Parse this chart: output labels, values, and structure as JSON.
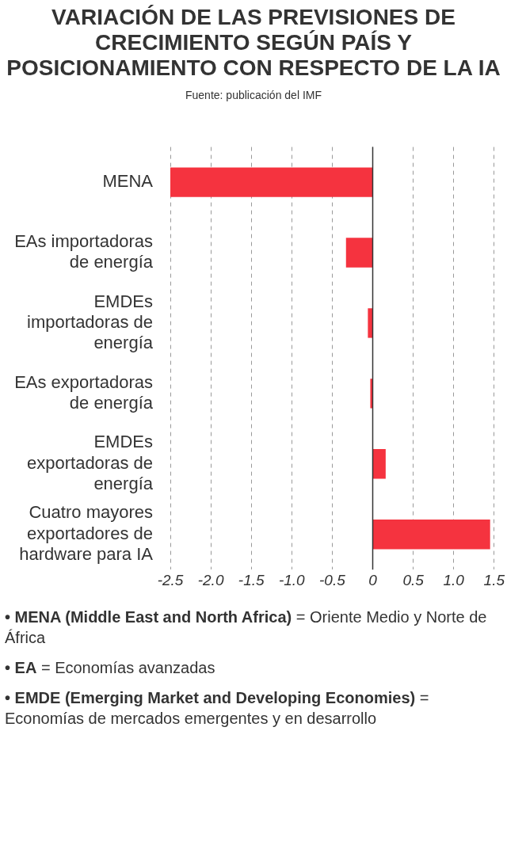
{
  "chart_data": {
    "type": "bar",
    "orientation": "horizontal",
    "title": "VARIACIÓN DE LAS PREVISIONES DE CRECIMIENTO SEGÚN PAÍS Y POSICIONAMIENTO CON RESPECTO DE LA IA",
    "subtitle": "Fuente: publicación del IMF",
    "categories": [
      "MENA",
      "EAs importadoras de energía",
      "EMDEs importadoras de energía",
      "EAs exportadoras de energía",
      "EMDEs exportadoras de energía",
      "Cuatro mayores exportadores de hardware para IA"
    ],
    "values": [
      -2.5,
      -0.33,
      -0.06,
      -0.03,
      0.16,
      1.45
    ],
    "color": "#f5333f",
    "xlim": [
      -2.5,
      1.5
    ],
    "xticks": [
      {
        "value": -2.5,
        "label": "-2.5"
      },
      {
        "value": -2,
        "label": "-2.0"
      },
      {
        "value": -1.5,
        "label": "-1.5"
      },
      {
        "value": -1,
        "label": "-1.0"
      },
      {
        "value": -0.5,
        "label": "-0.5"
      },
      0,
      0.5,
      {
        "value": 1,
        "label": "1.0"
      },
      1.5
    ],
    "grid": "x",
    "legend": false,
    "ref_lines": [
      {
        "axis": "x",
        "value": 0,
        "color": "#333333"
      }
    ],
    "annotations": [
      "• MENA (Middle East and North Africa) = Oriente Medio y Norte de África",
      "• EA = Economías avanzadas",
      "• EMDE (Emerging Market and Developing Economies) = Economías de mercados emergentes y en desarrollo"
    ]
  }
}
